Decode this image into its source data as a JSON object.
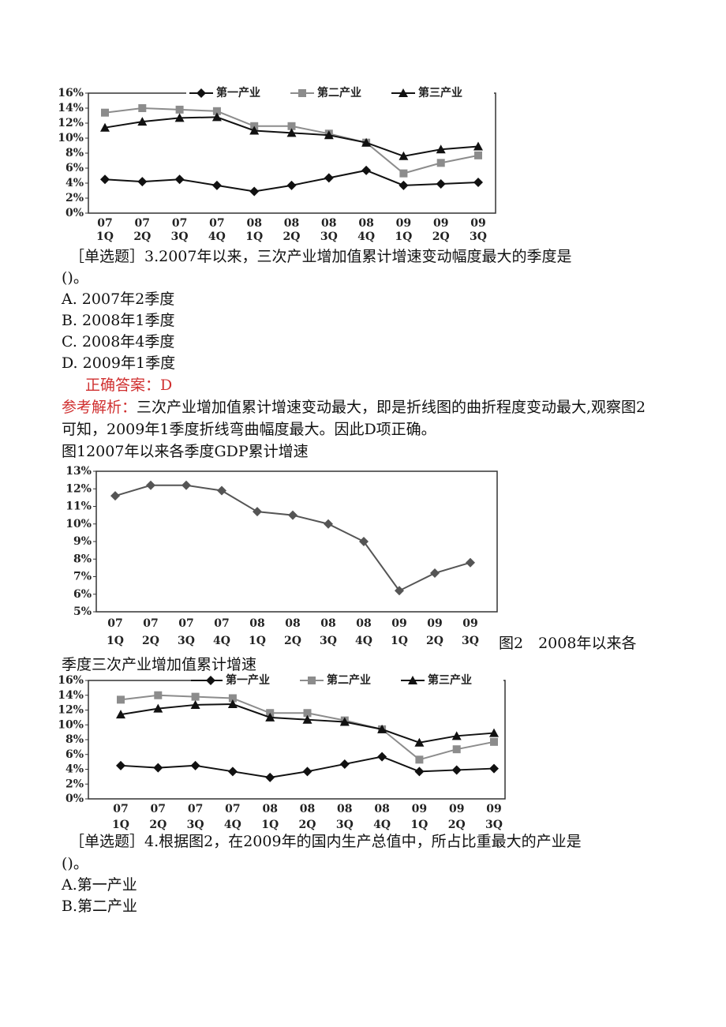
{
  "chart_data": [
    {
      "type": "line",
      "categories": [
        [
          "07",
          "1Q"
        ],
        [
          "07",
          "2Q"
        ],
        [
          "07",
          "3Q"
        ],
        [
          "07",
          "4Q"
        ],
        [
          "08",
          "1Q"
        ],
        [
          "08",
          "2Q"
        ],
        [
          "08",
          "3Q"
        ],
        [
          "08",
          "4Q"
        ],
        [
          "09",
          "1Q"
        ],
        [
          "09",
          "2Q"
        ],
        [
          "09",
          "3Q"
        ]
      ],
      "series": [
        {
          "name": "第一产业",
          "color": "#111111",
          "marker": "diamond",
          "values": [
            4.5,
            4.2,
            4.5,
            3.7,
            2.9,
            3.7,
            4.7,
            5.7,
            3.7,
            3.9,
            4.1
          ]
        },
        {
          "name": "第二产业",
          "color": "#8c8c8c",
          "marker": "square",
          "values": [
            13.4,
            14.0,
            13.8,
            13.6,
            11.6,
            11.6,
            10.6,
            9.4,
            5.3,
            6.7,
            7.7
          ]
        },
        {
          "name": "第三产业",
          "color": "#111111",
          "marker": "triangle",
          "values": [
            11.4,
            12.2,
            12.7,
            12.8,
            11.0,
            10.7,
            10.4,
            9.4,
            7.6,
            8.5,
            8.9
          ]
        }
      ],
      "ylim": [
        0,
        16
      ],
      "yticks": [
        {
          "value": 0,
          "label": "0%"
        },
        {
          "value": 2,
          "label": "2%"
        },
        {
          "value": 4,
          "label": "4%"
        },
        {
          "value": 6,
          "label": "6%"
        },
        {
          "value": 8,
          "label": "8%"
        },
        {
          "value": 10,
          "label": "10%"
        },
        {
          "value": 12,
          "label": "12%"
        },
        {
          "value": 14,
          "label": "14%"
        },
        {
          "value": 16,
          "label": "16%"
        }
      ],
      "legend": "top"
    },
    {
      "type": "line",
      "categories": [
        [
          "07",
          "1Q"
        ],
        [
          "07",
          "2Q"
        ],
        [
          "07",
          "3Q"
        ],
        [
          "07",
          "4Q"
        ],
        [
          "08",
          "1Q"
        ],
        [
          "08",
          "2Q"
        ],
        [
          "08",
          "3Q"
        ],
        [
          "08",
          "4Q"
        ],
        [
          "09",
          "1Q"
        ],
        [
          "09",
          "2Q"
        ],
        [
          "09",
          "3Q"
        ]
      ],
      "series": [
        {
          "color": "#555555",
          "marker": "diamond",
          "values": [
            11.6,
            12.2,
            12.2,
            11.9,
            10.7,
            10.5,
            10.0,
            9.0,
            6.2,
            7.2,
            7.8
          ]
        }
      ],
      "ylim": [
        5,
        13
      ],
      "yticks": [
        {
          "value": 5,
          "label": "5%"
        },
        {
          "value": 6,
          "label": "6%"
        },
        {
          "value": 7,
          "label": "7%"
        },
        {
          "value": 8,
          "label": "8%"
        },
        {
          "value": 9,
          "label": "9%"
        },
        {
          "value": 10,
          "label": "10%"
        },
        {
          "value": 11,
          "label": "11%"
        },
        {
          "value": 12,
          "label": "12%"
        },
        {
          "value": 13,
          "label": "13%"
        }
      ]
    },
    {
      "type": "line",
      "categories": [
        [
          "07",
          "1Q"
        ],
        [
          "07",
          "2Q"
        ],
        [
          "07",
          "3Q"
        ],
        [
          "07",
          "4Q"
        ],
        [
          "08",
          "1Q"
        ],
        [
          "08",
          "2Q"
        ],
        [
          "08",
          "3Q"
        ],
        [
          "08",
          "4Q"
        ],
        [
          "09",
          "1Q"
        ],
        [
          "09",
          "2Q"
        ],
        [
          "09",
          "3Q"
        ]
      ],
      "series": [
        {
          "name": "第一产业",
          "color": "#111111",
          "marker": "diamond",
          "values": [
            4.5,
            4.2,
            4.5,
            3.7,
            2.9,
            3.7,
            4.7,
            5.7,
            3.7,
            3.9,
            4.1
          ]
        },
        {
          "name": "第二产业",
          "color": "#8c8c8c",
          "marker": "square",
          "values": [
            13.4,
            14.0,
            13.8,
            13.6,
            11.6,
            11.6,
            10.6,
            9.4,
            5.3,
            6.7,
            7.7
          ]
        },
        {
          "name": "第三产业",
          "color": "#111111",
          "marker": "triangle",
          "values": [
            11.4,
            12.2,
            12.7,
            12.8,
            11.0,
            10.7,
            10.4,
            9.4,
            7.6,
            8.5,
            8.9
          ]
        }
      ],
      "ylim": [
        0,
        16
      ],
      "yticks": [
        {
          "value": 0,
          "label": "0%"
        },
        {
          "value": 2,
          "label": "2%"
        },
        {
          "value": 4,
          "label": "4%"
        },
        {
          "value": 6,
          "label": "6%"
        },
        {
          "value": 8,
          "label": "8%"
        },
        {
          "value": 10,
          "label": "10%"
        },
        {
          "value": 12,
          "label": "12%"
        },
        {
          "value": 14,
          "label": "14%"
        },
        {
          "value": 16,
          "label": "16%"
        }
      ],
      "legend": "top"
    }
  ],
  "document": {
    "q3": {
      "stem": "［单选题］3.2007年以来，三次产业增加值累计增速变动幅度最大的季度是",
      "blank": "()。",
      "options": [
        "A. 2007年2季度",
        "B. 2008年1季度",
        "C. 2008年4季度",
        "D. 2009年1季度"
      ],
      "answer": "正确答案：D",
      "analysis_label": "参考解析：",
      "analysis": "三次产业增加值累计增速变动最大，即是折线图的曲折程度变动最大,观察图2可知，2009年1季度折线弯曲幅度最大。因此D项正确。"
    },
    "caption1": "图12007年以来各季度GDP累计增速",
    "caption2": [
      "图2　2008年以来各",
      "季度三次产业增加值累计增速"
    ],
    "q4": {
      "stem": "［单选题］4.根据图2，在2009年的国内生产总值中，所占比重最大的产业是",
      "blank": "()。",
      "options": [
        "A.第一产业",
        "B.第二产业"
      ]
    }
  }
}
